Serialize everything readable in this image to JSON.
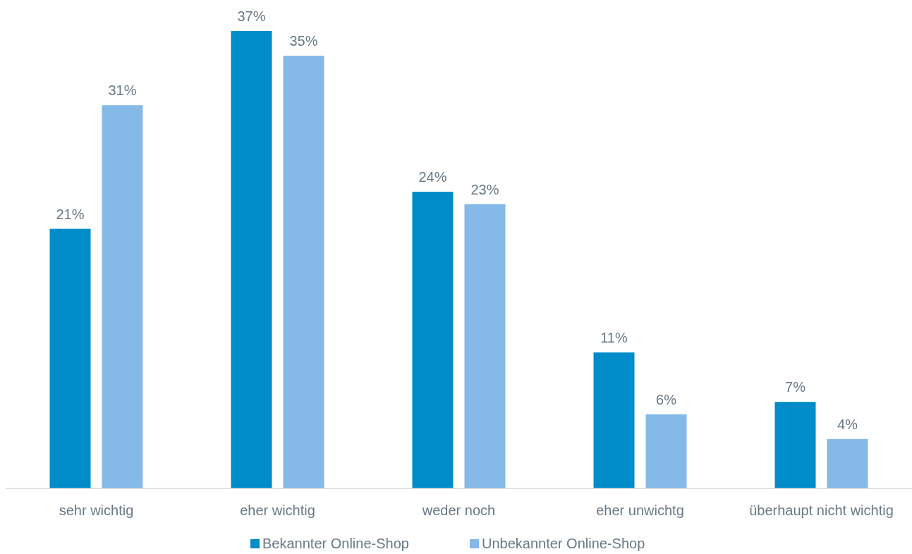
{
  "chart_data": {
    "type": "bar",
    "categories": [
      "sehr wichtig",
      "eher wichtig",
      "weder noch",
      "eher unwichtg",
      "überhaupt nicht wichtig"
    ],
    "series": [
      {
        "name": "Bekannter Online-Shop",
        "color": "#008bc9",
        "values": [
          21,
          37,
          24,
          11,
          7
        ],
        "value_labels": [
          "21%",
          "37%",
          "24%",
          "11%",
          "7%"
        ]
      },
      {
        "name": "Unbekannter Online-Shop",
        "color": "#85b9e8",
        "values": [
          31,
          35,
          23,
          6,
          4
        ],
        "value_labels": [
          "31%",
          "35%",
          "23%",
          "6%",
          "4%"
        ]
      }
    ],
    "legend": "bottom",
    "grid": false
  }
}
